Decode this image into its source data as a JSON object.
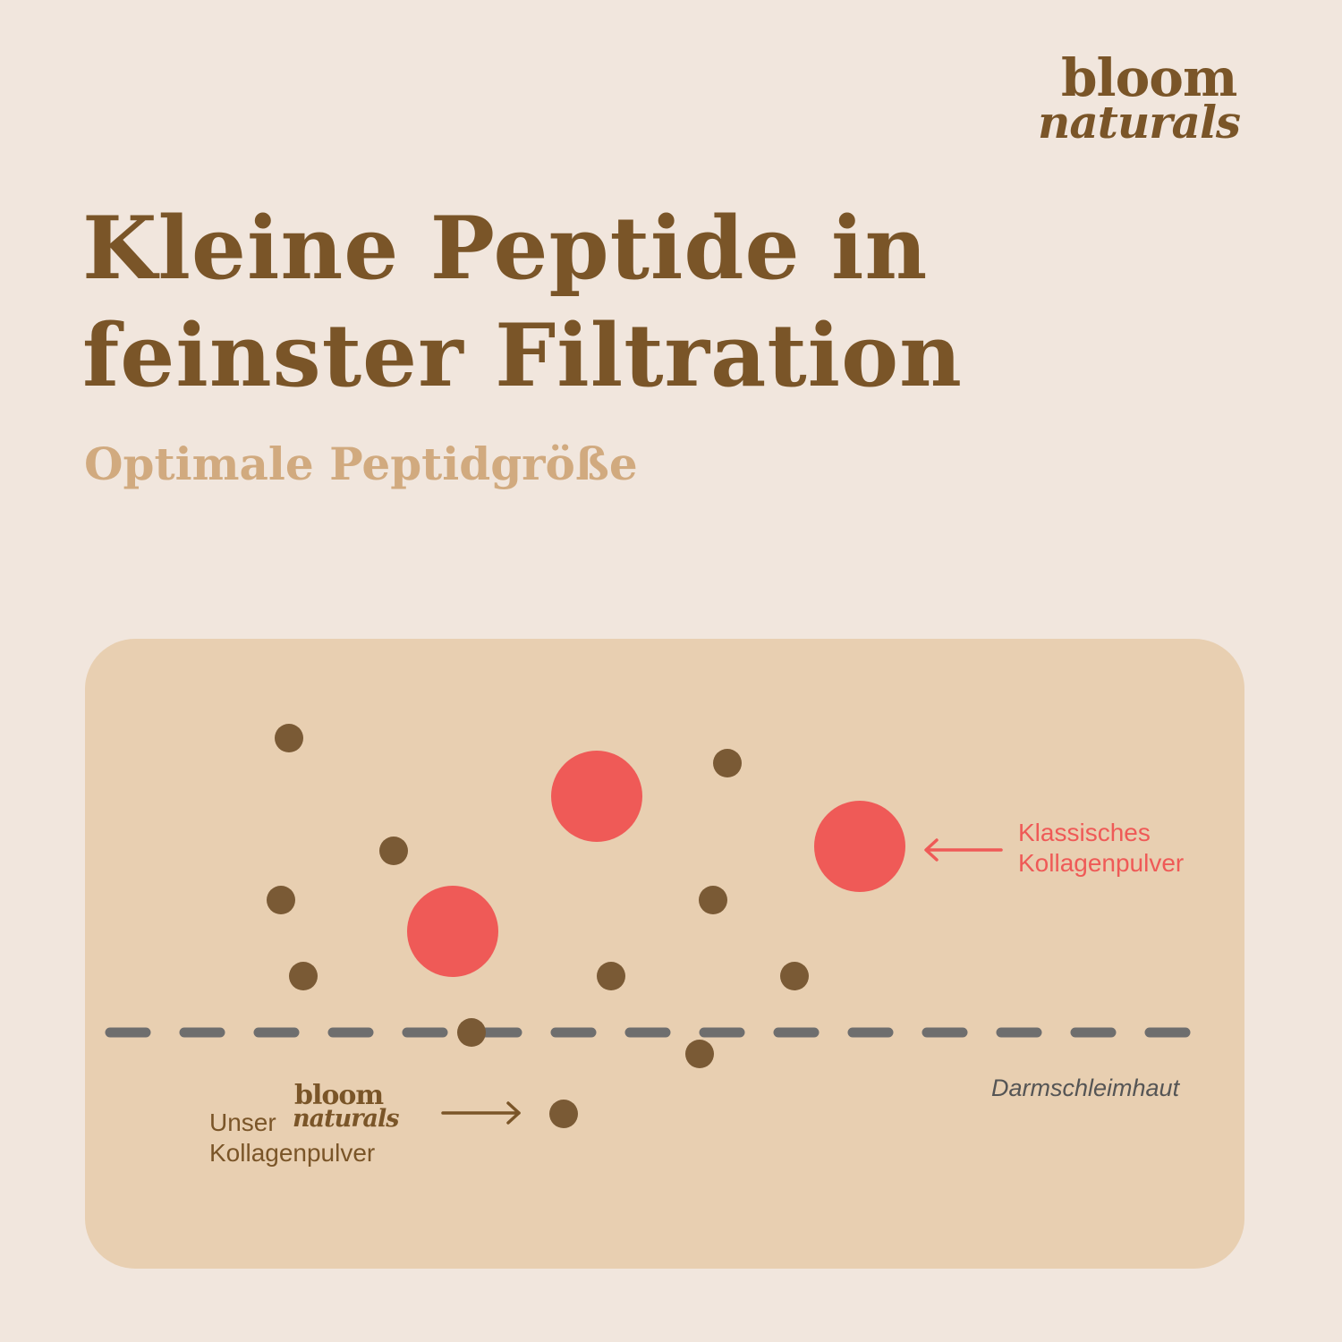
{
  "brand": {
    "line1": "bloom",
    "line2": "naturals"
  },
  "heading": {
    "title_line1": "Kleine Peptide in",
    "title_line2": "feinster Filtration",
    "subtitle": "Optimale Peptidgröße"
  },
  "diagram": {
    "label_classic_line1": "Klassisches",
    "label_classic_line2": "Kollagenpulver",
    "label_membrane": "Darmschleimhaut",
    "label_ours_line1": "Unser",
    "label_ours_line2": "Kollagenpulver",
    "colors": {
      "small_peptide": "#7a5a35",
      "large_peptide": "#ef5a57",
      "membrane": "#6e6e6e",
      "arrow_classic": "#ef5a57",
      "arrow_ours": "#7a5528"
    }
  }
}
